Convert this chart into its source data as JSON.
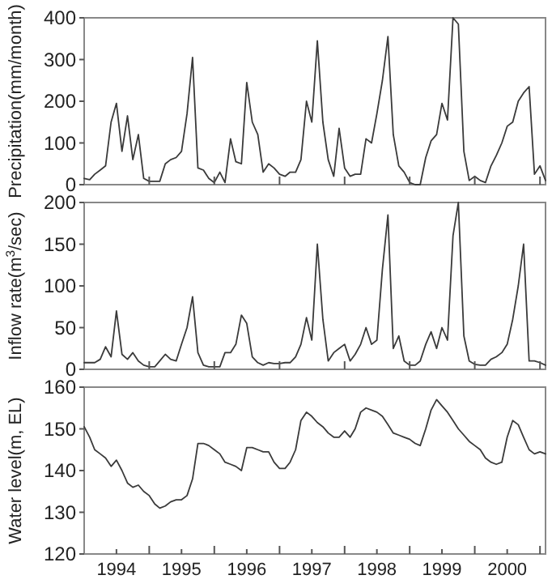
{
  "chart_data": [
    {
      "type": "line",
      "ylabel": "Precipitation(mm/month)",
      "xlim": [
        "1994-01",
        "2001-02"
      ],
      "ylim": [
        0,
        400
      ],
      "yticks": [
        0,
        100,
        200,
        300,
        400
      ],
      "xticks": [
        {
          "value": "1995-01",
          "label": null
        },
        {
          "value": "1996-01",
          "label": null
        },
        {
          "value": "1997-01",
          "label": null
        },
        {
          "value": "1998-01",
          "label": null
        },
        {
          "value": "1999-01",
          "label": null
        },
        {
          "value": "2000-01",
          "label": null
        },
        {
          "value": "2001-01",
          "label": null
        }
      ],
      "tick_labels": "y",
      "grid": false,
      "x": [
        "1994-01",
        "1994-02",
        "1994-03",
        "1994-04",
        "1994-05",
        "1994-06",
        "1994-07",
        "1994-08",
        "1994-09",
        "1994-10",
        "1994-11",
        "1994-12",
        "1995-01",
        "1995-02",
        "1995-03",
        "1995-04",
        "1995-05",
        "1995-06",
        "1995-07",
        "1995-08",
        "1995-09",
        "1995-10",
        "1995-11",
        "1995-12",
        "1996-01",
        "1996-02",
        "1996-03",
        "1996-04",
        "1996-05",
        "1996-06",
        "1996-07",
        "1996-08",
        "1996-09",
        "1996-10",
        "1996-11",
        "1996-12",
        "1997-01",
        "1997-02",
        "1997-03",
        "1997-04",
        "1997-05",
        "1997-06",
        "1997-07",
        "1997-08",
        "1997-09",
        "1997-10",
        "1997-11",
        "1997-12",
        "1998-01",
        "1998-02",
        "1998-03",
        "1998-04",
        "1998-05",
        "1998-06",
        "1998-07",
        "1998-08",
        "1998-09",
        "1998-10",
        "1998-11",
        "1998-12",
        "1999-01",
        "1999-02",
        "1999-03",
        "1999-04",
        "1999-05",
        "1999-06",
        "1999-07",
        "1999-08",
        "1999-09",
        "1999-10",
        "1999-11",
        "1999-12",
        "2000-01",
        "2000-02",
        "2000-03",
        "2000-04",
        "2000-05",
        "2000-06",
        "2000-07",
        "2000-08",
        "2000-09",
        "2000-10",
        "2000-11",
        "2000-12",
        "2001-01",
        "2001-02"
      ],
      "series": [
        {
          "color": "#3a3a3a",
          "values": [
            15,
            12,
            25,
            35,
            45,
            150,
            195,
            80,
            165,
            60,
            120,
            15,
            8,
            8,
            8,
            50,
            60,
            65,
            80,
            170,
            305,
            40,
            35,
            15,
            5,
            30,
            5,
            110,
            55,
            50,
            245,
            150,
            120,
            30,
            50,
            40,
            25,
            20,
            30,
            30,
            60,
            200,
            150,
            345,
            150,
            60,
            20,
            135,
            40,
            20,
            25,
            25,
            110,
            100,
            170,
            250,
            355,
            120,
            45,
            30,
            5,
            0,
            0,
            65,
            105,
            120,
            195,
            155,
            400,
            385,
            80,
            10,
            20,
            10,
            5,
            45,
            70,
            100,
            140,
            150,
            200,
            220,
            235,
            25,
            45,
            10
          ]
        }
      ]
    },
    {
      "type": "line",
      "ylabel": "Inflow rate(m$^{3}$/sec)",
      "xlim": [
        "1994-01",
        "2001-02"
      ],
      "ylim": [
        0,
        200
      ],
      "yticks": [
        0,
        50,
        100,
        150,
        200
      ],
      "xticks": [
        {
          "value": "1995-01",
          "label": null
        },
        {
          "value": "1996-01",
          "label": null
        },
        {
          "value": "1997-01",
          "label": null
        },
        {
          "value": "1998-01",
          "label": null
        },
        {
          "value": "1999-01",
          "label": null
        },
        {
          "value": "2000-01",
          "label": null
        },
        {
          "value": "2001-01",
          "label": null
        }
      ],
      "tick_labels": "y",
      "grid": false,
      "x": [
        "1994-01",
        "1994-02",
        "1994-03",
        "1994-04",
        "1994-05",
        "1994-06",
        "1994-07",
        "1994-08",
        "1994-09",
        "1994-10",
        "1994-11",
        "1994-12",
        "1995-01",
        "1995-02",
        "1995-03",
        "1995-04",
        "1995-05",
        "1995-06",
        "1995-07",
        "1995-08",
        "1995-09",
        "1995-10",
        "1995-11",
        "1995-12",
        "1996-01",
        "1996-02",
        "1996-03",
        "1996-04",
        "1996-05",
        "1996-06",
        "1996-07",
        "1996-08",
        "1996-09",
        "1996-10",
        "1996-11",
        "1996-12",
        "1997-01",
        "1997-02",
        "1997-03",
        "1997-04",
        "1997-05",
        "1997-06",
        "1997-07",
        "1997-08",
        "1997-09",
        "1997-10",
        "1997-11",
        "1997-12",
        "1998-01",
        "1998-02",
        "1998-03",
        "1998-04",
        "1998-05",
        "1998-06",
        "1998-07",
        "1998-08",
        "1998-09",
        "1998-10",
        "1998-11",
        "1998-12",
        "1999-01",
        "1999-02",
        "1999-03",
        "1999-04",
        "1999-05",
        "1999-06",
        "1999-07",
        "1999-08",
        "1999-09",
        "1999-10",
        "1999-11",
        "1999-12",
        "2000-01",
        "2000-02",
        "2000-03",
        "2000-04",
        "2000-05",
        "2000-06",
        "2000-07",
        "2000-08",
        "2000-09",
        "2000-10",
        "2000-11",
        "2000-12",
        "2001-01",
        "2001-02"
      ],
      "series": [
        {
          "color": "#3a3a3a",
          "values": [
            8,
            8,
            8,
            12,
            27,
            15,
            70,
            18,
            12,
            20,
            10,
            5,
            3,
            3,
            10,
            18,
            12,
            10,
            30,
            50,
            87,
            20,
            5,
            3,
            3,
            3,
            20,
            20,
            30,
            65,
            55,
            15,
            8,
            5,
            8,
            7,
            7,
            8,
            8,
            15,
            30,
            62,
            35,
            150,
            60,
            10,
            20,
            25,
            30,
            10,
            18,
            30,
            50,
            30,
            35,
            120,
            185,
            25,
            40,
            10,
            5,
            5,
            10,
            30,
            45,
            25,
            50,
            35,
            160,
            200,
            40,
            10,
            6,
            5,
            5,
            12,
            15,
            20,
            30,
            60,
            100,
            150,
            10,
            10,
            8,
            5
          ]
        }
      ]
    },
    {
      "type": "line",
      "ylabel": "Water level(m, EL)",
      "xlim": [
        "1994-01",
        "2001-02"
      ],
      "ylim": [
        120,
        160
      ],
      "yticks": [
        120,
        130,
        140,
        150,
        160
      ],
      "xticks": [
        {
          "value": "1994-07",
          "label": "1994"
        },
        {
          "value": "1995-01",
          "label": null
        },
        {
          "value": "1995-07",
          "label": "1995"
        },
        {
          "value": "1996-01",
          "label": null
        },
        {
          "value": "1996-07",
          "label": "1996"
        },
        {
          "value": "1997-01",
          "label": null
        },
        {
          "value": "1997-07",
          "label": "1997"
        },
        {
          "value": "1998-01",
          "label": null
        },
        {
          "value": "1998-07",
          "label": "1998"
        },
        {
          "value": "1999-01",
          "label": null
        },
        {
          "value": "1999-07",
          "label": "1999"
        },
        {
          "value": "2000-01",
          "label": null
        },
        {
          "value": "2000-07",
          "label": "2000"
        },
        {
          "value": "2001-01",
          "label": null
        }
      ],
      "grid": false,
      "x": [
        "1994-01",
        "1994-02",
        "1994-03",
        "1994-04",
        "1994-05",
        "1994-06",
        "1994-07",
        "1994-08",
        "1994-09",
        "1994-10",
        "1994-11",
        "1994-12",
        "1995-01",
        "1995-02",
        "1995-03",
        "1995-04",
        "1995-05",
        "1995-06",
        "1995-07",
        "1995-08",
        "1995-09",
        "1995-10",
        "1995-11",
        "1995-12",
        "1996-01",
        "1996-02",
        "1996-03",
        "1996-04",
        "1996-05",
        "1996-06",
        "1996-07",
        "1996-08",
        "1996-09",
        "1996-10",
        "1996-11",
        "1996-12",
        "1997-01",
        "1997-02",
        "1997-03",
        "1997-04",
        "1997-05",
        "1997-06",
        "1997-07",
        "1997-08",
        "1997-09",
        "1997-10",
        "1997-11",
        "1997-12",
        "1998-01",
        "1998-02",
        "1998-03",
        "1998-04",
        "1998-05",
        "1998-06",
        "1998-07",
        "1998-08",
        "1998-09",
        "1998-10",
        "1998-11",
        "1998-12",
        "1999-01",
        "1999-02",
        "1999-03",
        "1999-04",
        "1999-05",
        "1999-06",
        "1999-07",
        "1999-08",
        "1999-09",
        "1999-10",
        "1999-11",
        "1999-12",
        "2000-01",
        "2000-02",
        "2000-03",
        "2000-04",
        "2000-05",
        "2000-06",
        "2000-07",
        "2000-08",
        "2000-09",
        "2000-10",
        "2000-11",
        "2000-12",
        "2001-01",
        "2001-02"
      ],
      "series": [
        {
          "color": "#3a3a3a",
          "values": [
            150.5,
            148,
            145,
            144,
            143,
            141,
            142.5,
            140,
            137,
            136,
            136.5,
            135,
            134,
            132,
            131,
            131.5,
            132.5,
            133,
            133,
            134,
            138,
            146.5,
            146.5,
            146,
            145,
            144,
            142,
            141.5,
            141,
            140,
            145.5,
            145.5,
            145,
            144.5,
            144.5,
            142,
            140.5,
            140.5,
            142,
            145,
            152,
            154,
            153,
            151.5,
            150.5,
            149,
            148,
            148,
            149.5,
            148,
            150,
            154,
            155,
            154.5,
            154,
            153,
            151,
            149,
            148.5,
            148,
            147.5,
            146.5,
            146,
            150,
            154.5,
            157,
            155.5,
            154,
            152,
            150,
            148.5,
            147,
            146,
            145,
            143,
            142,
            141.5,
            142,
            148,
            152,
            151,
            148,
            145,
            144,
            144.5,
            144
          ]
        }
      ]
    }
  ]
}
